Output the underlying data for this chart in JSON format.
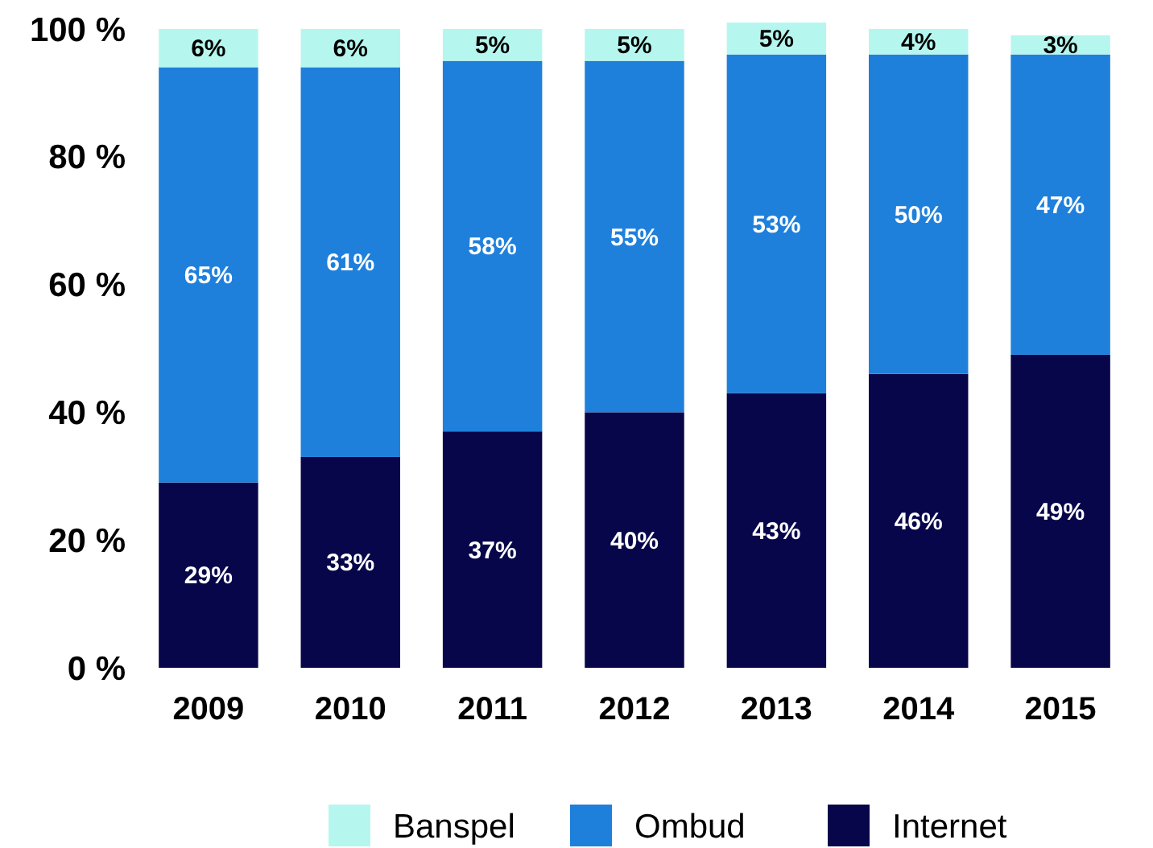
{
  "chart_data": {
    "type": "bar",
    "stacked": true,
    "categories": [
      "2009",
      "2010",
      "2011",
      "2012",
      "2013",
      "2014",
      "2015"
    ],
    "series": [
      {
        "name": "Internet",
        "color": "#07064a",
        "values": [
          29,
          33,
          37,
          40,
          43,
          46,
          49
        ],
        "value_labels": [
          "29%",
          "33%",
          "37%",
          "40%",
          "43%",
          "46%",
          "49%"
        ]
      },
      {
        "name": "Ombud",
        "color": "#1f80dc",
        "values": [
          65,
          61,
          58,
          55,
          53,
          50,
          47
        ],
        "value_labels": [
          "65%",
          "61%",
          "58%",
          "55%",
          "53%",
          "50%",
          "47%"
        ]
      },
      {
        "name": "Banspel",
        "color": "#b5f7ee",
        "values": [
          6,
          6,
          5,
          5,
          5,
          4,
          3
        ],
        "value_labels": [
          "6%",
          "6%",
          "5%",
          "5%",
          "5%",
          "4%",
          "3%"
        ]
      }
    ],
    "ylim": [
      0,
      101
    ],
    "yticks": [
      {
        "value": 0,
        "label": "0 %"
      },
      {
        "value": 20,
        "label": "20 %"
      },
      {
        "value": 40,
        "label": "40 %"
      },
      {
        "value": 60,
        "label": "60 %"
      },
      {
        "value": 80,
        "label": "80 %"
      },
      {
        "value": 100,
        "label": "100 %"
      }
    ],
    "legend": "bottom",
    "grid": false
  }
}
